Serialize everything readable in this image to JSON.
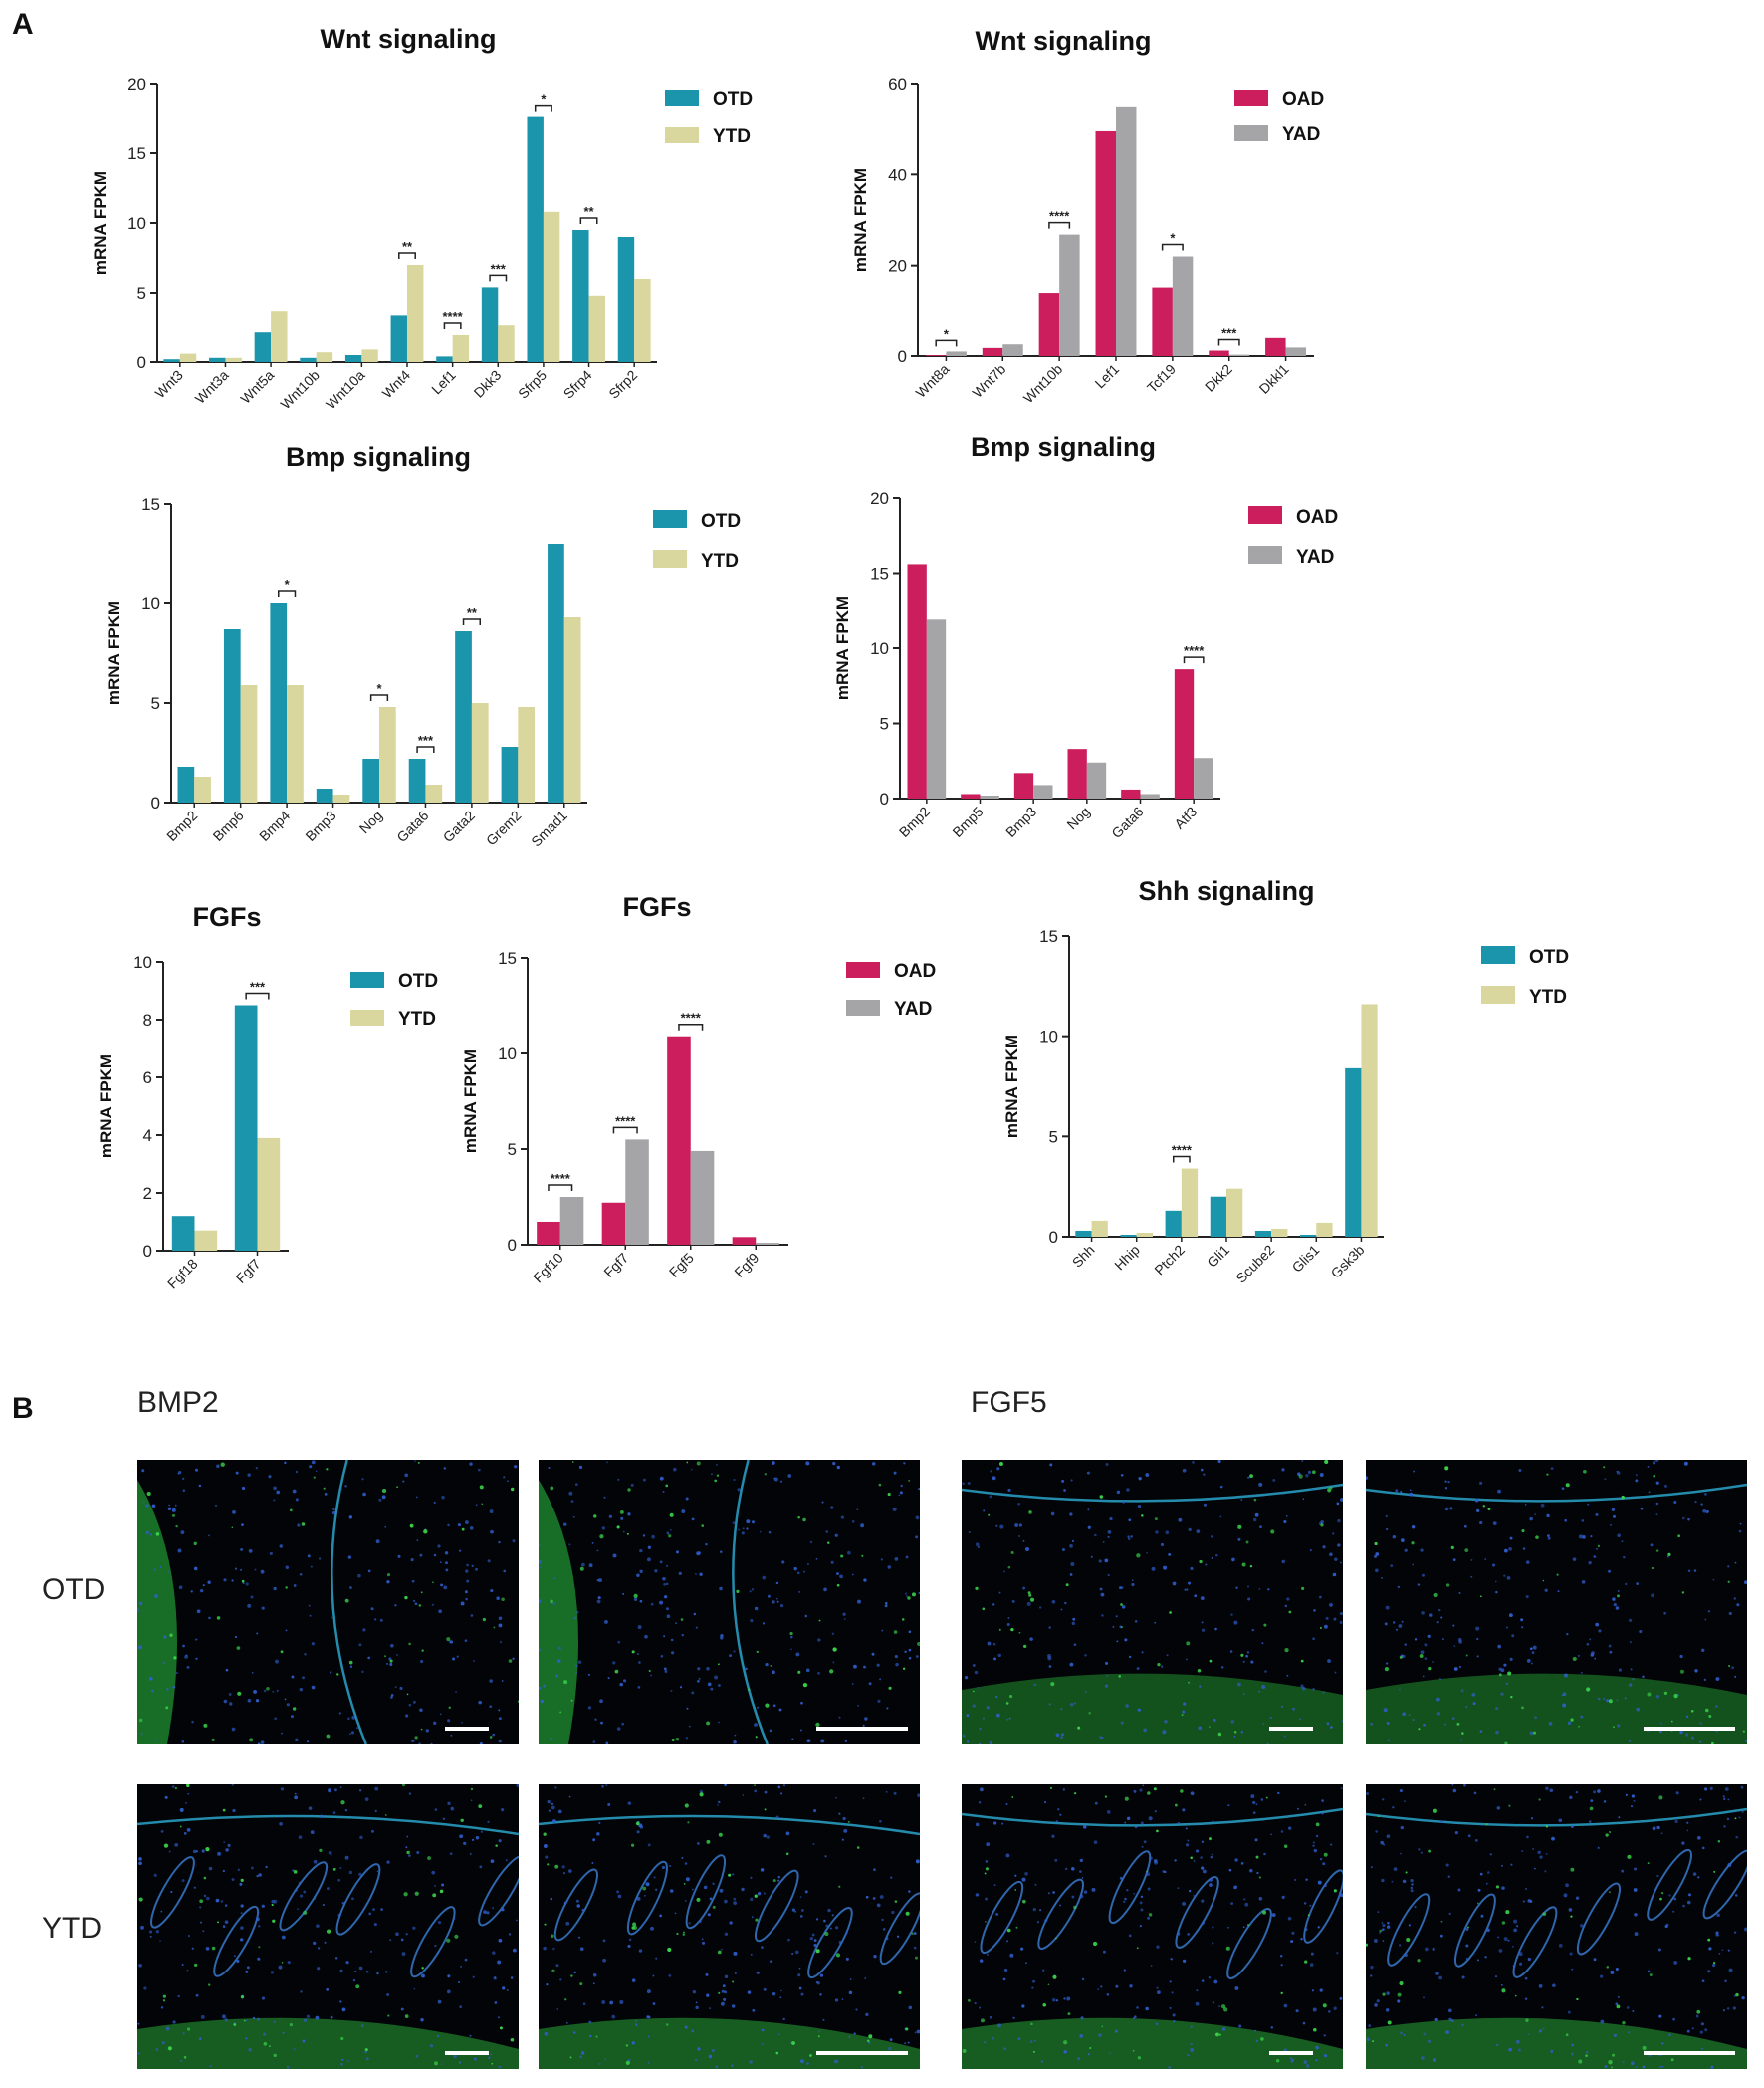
{
  "panel_a": {
    "label": "A"
  },
  "panel_b": {
    "label": "B",
    "markers": [
      "BMP2",
      "FGF5"
    ],
    "rows": [
      "OTD",
      "YTD"
    ]
  },
  "colors": {
    "OTD": "#1b95ac",
    "YTD": "#d9d79d",
    "OAD": "#cc1d5c",
    "YAD": "#a5a5a8"
  },
  "chart_data": [
    {
      "type": "bar",
      "title": "Wnt signaling",
      "xlabel": "",
      "ylabel": "mRNA FPKM",
      "ylim": [
        0,
        20
      ],
      "yticks": [
        0,
        5,
        10,
        15,
        20
      ],
      "legend": "top-right",
      "categories": [
        "Wnt3",
        "Wnt3a",
        "Wnt5a",
        "Wnt10b",
        "Wnt10a",
        "Wnt4",
        "Lef1",
        "Dkk3",
        "Sfrp5",
        "Sfrp4",
        "Sfrp2"
      ],
      "series": [
        {
          "name": "OTD",
          "values": [
            0.2,
            0.3,
            2.2,
            0.3,
            0.5,
            3.4,
            0.4,
            5.4,
            17.6,
            9.5,
            9.0
          ]
        },
        {
          "name": "YTD",
          "values": [
            0.6,
            0.3,
            3.7,
            0.7,
            0.9,
            7.0,
            2.0,
            2.7,
            10.8,
            4.8,
            6.0
          ]
        }
      ],
      "significance": [
        {
          "category": "Wnt4",
          "label": "**"
        },
        {
          "category": "Lef1",
          "label": "****"
        },
        {
          "category": "Dkk3",
          "label": "***"
        },
        {
          "category": "Sfrp5",
          "label": "*"
        },
        {
          "category": "Sfrp4",
          "label": "**"
        }
      ]
    },
    {
      "type": "bar",
      "title": "Wnt signaling",
      "xlabel": "",
      "ylabel": "mRNA FPKM",
      "ylim": [
        0,
        60
      ],
      "yticks": [
        0,
        20,
        40,
        60
      ],
      "legend": "top-right",
      "categories": [
        "Wnt8a",
        "Wnt7b",
        "Wnt10b",
        "Lef1",
        "Tcf19",
        "Dkk2",
        "Dkkl1"
      ],
      "series": [
        {
          "name": "OAD",
          "values": [
            0.2,
            2.0,
            14.0,
            49.5,
            15.2,
            1.2,
            4.2
          ]
        },
        {
          "name": "YAD",
          "values": [
            1.0,
            2.8,
            26.8,
            55.0,
            22.0,
            0.3,
            2.1
          ]
        }
      ],
      "significance": [
        {
          "category": "Wnt8a",
          "label": "*"
        },
        {
          "category": "Wnt10b",
          "label": "****"
        },
        {
          "category": "Tcf19",
          "label": "*"
        },
        {
          "category": "Dkk2",
          "label": "***"
        }
      ]
    },
    {
      "type": "bar",
      "title": "Bmp signaling",
      "xlabel": "",
      "ylabel": "mRNA FPKM",
      "ylim": [
        0,
        15
      ],
      "yticks": [
        0,
        5,
        10,
        15
      ],
      "legend": "top-right",
      "categories": [
        "Bmp2",
        "Bmp6",
        "Bmp4",
        "Bmp3",
        "Nog",
        "Gata6",
        "Gata2",
        "Grem2",
        "Smad1"
      ],
      "series": [
        {
          "name": "OTD",
          "values": [
            1.8,
            8.7,
            10.0,
            0.7,
            2.2,
            2.2,
            8.6,
            2.8,
            13.0
          ]
        },
        {
          "name": "YTD",
          "values": [
            1.3,
            5.9,
            5.9,
            0.4,
            4.8,
            0.9,
            5.0,
            4.8,
            9.3
          ]
        }
      ],
      "significance": [
        {
          "category": "Bmp4",
          "label": "*"
        },
        {
          "category": "Nog",
          "label": "*"
        },
        {
          "category": "Gata6",
          "label": "***"
        },
        {
          "category": "Gata2",
          "label": "**"
        }
      ]
    },
    {
      "type": "bar",
      "title": "Bmp signaling",
      "xlabel": "",
      "ylabel": "mRNA FPKM",
      "ylim": [
        0,
        20
      ],
      "yticks": [
        0,
        5,
        10,
        15,
        20
      ],
      "legend": "top-right",
      "categories": [
        "Bmp2",
        "Bmp5",
        "Bmp3",
        "Nog",
        "Gata6",
        "Atf3"
      ],
      "series": [
        {
          "name": "OAD",
          "values": [
            15.6,
            0.3,
            1.7,
            3.3,
            0.6,
            8.6
          ]
        },
        {
          "name": "YAD",
          "values": [
            11.9,
            0.2,
            0.9,
            2.4,
            0.3,
            2.7
          ]
        }
      ],
      "significance": [
        {
          "category": "Atf3",
          "label": "****"
        }
      ]
    },
    {
      "type": "bar",
      "title": "FGFs",
      "xlabel": "",
      "ylabel": "mRNA FPKM",
      "ylim": [
        0,
        10
      ],
      "yticks": [
        0,
        2,
        4,
        6,
        8,
        10
      ],
      "legend": "top-right",
      "categories": [
        "Fgf18",
        "Fgf7"
      ],
      "series": [
        {
          "name": "OTD",
          "values": [
            1.2,
            8.5
          ]
        },
        {
          "name": "YTD",
          "values": [
            0.7,
            3.9
          ]
        }
      ],
      "significance": [
        {
          "category": "Fgf7",
          "label": "***"
        }
      ]
    },
    {
      "type": "bar",
      "title": "FGFs",
      "xlabel": "",
      "ylabel": "mRNA FPKM",
      "ylim": [
        0,
        15
      ],
      "yticks": [
        0,
        5,
        10,
        15
      ],
      "legend": "top-right",
      "categories": [
        "Fgf10",
        "Fgf7",
        "Fgf5",
        "Fgf9"
      ],
      "series": [
        {
          "name": "OAD",
          "values": [
            1.2,
            2.2,
            10.9,
            0.4
          ]
        },
        {
          "name": "YAD",
          "values": [
            2.5,
            5.5,
            4.9,
            0.1
          ]
        }
      ],
      "significance": [
        {
          "category": "Fgf10",
          "label": "****"
        },
        {
          "category": "Fgf7",
          "label": "****"
        },
        {
          "category": "Fgf5",
          "label": "****"
        }
      ]
    },
    {
      "type": "bar",
      "title": "Shh signaling",
      "xlabel": "",
      "ylabel": "mRNA FPKM",
      "ylim": [
        0,
        15
      ],
      "yticks": [
        0,
        5,
        10,
        15
      ],
      "legend": "top-right",
      "categories": [
        "Shh",
        "Hhip",
        "Ptch2",
        "Gli1",
        "Scube2",
        "Glis1",
        "Gsk3b"
      ],
      "series": [
        {
          "name": "OTD",
          "values": [
            0.3,
            0.1,
            1.3,
            2.0,
            0.3,
            0.1,
            8.4
          ]
        },
        {
          "name": "YTD",
          "values": [
            0.8,
            0.2,
            3.4,
            2.4,
            0.4,
            0.7,
            11.6
          ]
        }
      ],
      "significance": [
        {
          "category": "Ptch2",
          "label": "****"
        }
      ]
    }
  ]
}
